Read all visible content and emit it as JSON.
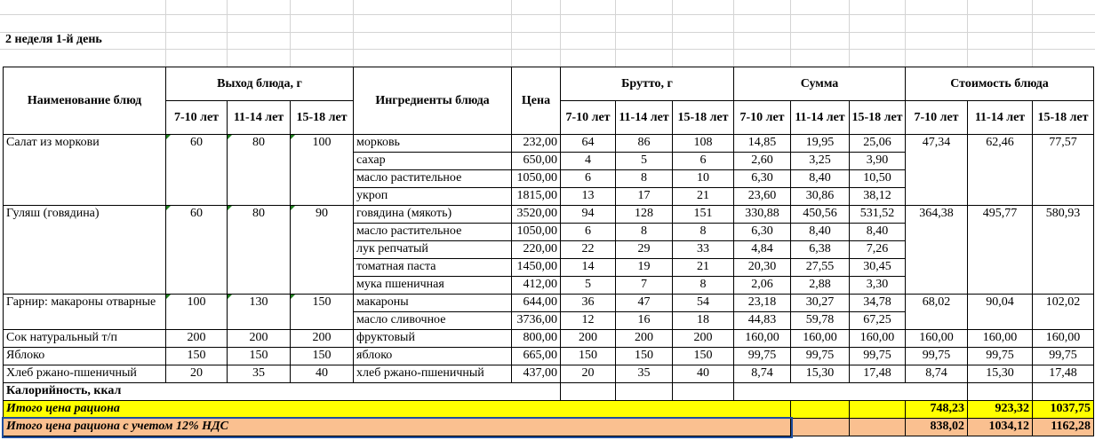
{
  "sheet_title": "2 неделя 1-й день",
  "headers": {
    "dish_name": "Наименование блюд",
    "yield": "Выход блюда, г",
    "ingredients": "Ингредиенты блюда",
    "price": "Цена",
    "brutto": "Брутто, г",
    "sum": "Сумма",
    "cost": "Стоимость блюда",
    "age_groups": [
      "7-10 лет",
      "11-14 лет",
      "15-18 лет"
    ]
  },
  "dishes": [
    {
      "name": "Салат из моркови",
      "yield": [
        "60",
        "80",
        "100"
      ],
      "cost": [
        "47,34",
        "62,46",
        "77,57"
      ],
      "ingredients": [
        {
          "name": "морковь",
          "price": "232,00",
          "brutto": [
            "64",
            "86",
            "108"
          ],
          "sum": [
            "14,85",
            "19,95",
            "25,06"
          ]
        },
        {
          "name": "сахар",
          "price": "650,00",
          "brutto": [
            "4",
            "5",
            "6"
          ],
          "sum": [
            "2,60",
            "3,25",
            "3,90"
          ]
        },
        {
          "name": "масло растительное",
          "price": "1050,00",
          "brutto": [
            "6",
            "8",
            "10"
          ],
          "sum": [
            "6,30",
            "8,40",
            "10,50"
          ]
        },
        {
          "name": "укроп",
          "price": "1815,00",
          "brutto": [
            "13",
            "17",
            "21"
          ],
          "sum": [
            "23,60",
            "30,86",
            "38,12"
          ]
        }
      ]
    },
    {
      "name": "Гуляш (говядина)",
      "yield": [
        "60",
        "80",
        "90"
      ],
      "cost": [
        "364,38",
        "495,77",
        "580,93"
      ],
      "ingredients": [
        {
          "name": "говядина (мякоть)",
          "price": "3520,00",
          "brutto": [
            "94",
            "128",
            "151"
          ],
          "sum": [
            "330,88",
            "450,56",
            "531,52"
          ]
        },
        {
          "name": "масло растительное",
          "price": "1050,00",
          "brutto": [
            "6",
            "8",
            "8"
          ],
          "sum": [
            "6,30",
            "8,40",
            "8,40"
          ]
        },
        {
          "name": "лук репчатый",
          "price": "220,00",
          "brutto": [
            "22",
            "29",
            "33"
          ],
          "sum": [
            "4,84",
            "6,38",
            "7,26"
          ]
        },
        {
          "name": "томатная паста",
          "price": "1450,00",
          "brutto": [
            "14",
            "19",
            "21"
          ],
          "sum": [
            "20,30",
            "27,55",
            "30,45"
          ]
        },
        {
          "name": "мука пшеничная",
          "price": "412,00",
          "brutto": [
            "5",
            "7",
            "8"
          ],
          "sum": [
            "2,06",
            "2,88",
            "3,30"
          ]
        }
      ]
    },
    {
      "name": "Гарнир: макароны отварные",
      "yield": [
        "100",
        "130",
        "150"
      ],
      "cost": [
        "68,02",
        "90,04",
        "102,02"
      ],
      "ingredients": [
        {
          "name": "макароны",
          "price": "644,00",
          "brutto": [
            "36",
            "47",
            "54"
          ],
          "sum": [
            "23,18",
            "30,27",
            "34,78"
          ]
        },
        {
          "name": "масло сливочное",
          "price": "3736,00",
          "brutto": [
            "12",
            "16",
            "18"
          ],
          "sum": [
            "44,83",
            "59,78",
            "67,25"
          ]
        }
      ]
    },
    {
      "name": "Сок натуральный т/п",
      "yield": [
        "200",
        "200",
        "200"
      ],
      "cost": [
        "160,00",
        "160,00",
        "160,00"
      ],
      "ingredients": [
        {
          "name": "фруктовый",
          "price": "800,00",
          "brutto": [
            "200",
            "200",
            "200"
          ],
          "sum": [
            "160,00",
            "160,00",
            "160,00"
          ]
        }
      ]
    },
    {
      "name": "Яблоко",
      "yield": [
        "150",
        "150",
        "150"
      ],
      "cost": [
        "99,75",
        "99,75",
        "99,75"
      ],
      "ingredients": [
        {
          "name": "яблоко",
          "price": "665,00",
          "brutto": [
            "150",
            "150",
            "150"
          ],
          "sum": [
            "99,75",
            "99,75",
            "99,75"
          ]
        }
      ]
    },
    {
      "name": "Хлеб ржано-пшеничный",
      "yield": [
        "20",
        "35",
        "40"
      ],
      "cost": [
        "8,74",
        "15,30",
        "17,48"
      ],
      "ingredients": [
        {
          "name": "хлеб ржано-пшеничный",
          "price": "437,00",
          "brutto": [
            "20",
            "35",
            "40"
          ],
          "sum": [
            "8,74",
            "15,30",
            "17,48"
          ]
        }
      ]
    }
  ],
  "calories_label": "Калорийность, ккал",
  "total": {
    "label": "Итого цена рациона",
    "values": [
      "748,23",
      "923,32",
      "1037,75"
    ],
    "color": "#ffff00"
  },
  "total_vat": {
    "label": "Итого цена рациона с учетом 12% НДС",
    "values": [
      "838,02",
      "1034,12",
      "1162,28"
    ],
    "color": "#fac090"
  }
}
